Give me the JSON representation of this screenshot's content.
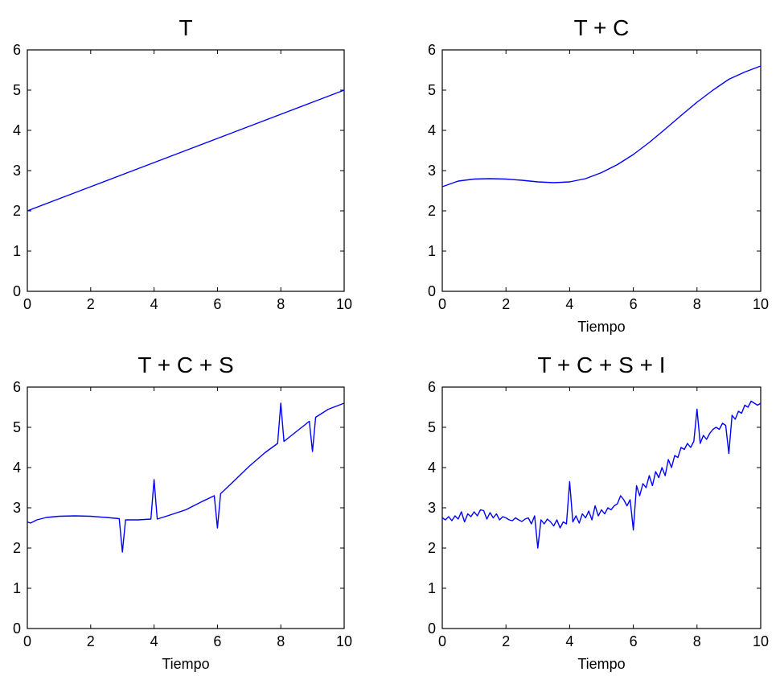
{
  "chart_data": [
    {
      "type": "line",
      "title": "T",
      "xlabel": "",
      "ylabel": "",
      "xlim": [
        0,
        10
      ],
      "ylim": [
        0,
        6
      ],
      "xticks": [
        0,
        2,
        4,
        6,
        8,
        10
      ],
      "yticks": [
        0,
        1,
        2,
        3,
        4,
        5,
        6
      ],
      "grid": false,
      "color": "#0000ff",
      "x": [
        0,
        1,
        2,
        3,
        4,
        5,
        6,
        7,
        8,
        9,
        10
      ],
      "y": [
        2.0,
        2.3,
        2.6,
        2.9,
        3.2,
        3.5,
        3.8,
        4.1,
        4.4,
        4.7,
        5.0
      ]
    },
    {
      "type": "line",
      "title": "T + C",
      "xlabel": "Tiempo",
      "ylabel": "",
      "xlim": [
        0,
        10
      ],
      "ylim": [
        0,
        6
      ],
      "xticks": [
        0,
        2,
        4,
        6,
        8,
        10
      ],
      "yticks": [
        0,
        1,
        2,
        3,
        4,
        5,
        6
      ],
      "grid": false,
      "color": "#0000ff",
      "x": [
        0,
        0.5,
        1,
        1.5,
        2,
        2.5,
        3,
        3.5,
        4,
        4.5,
        5,
        5.5,
        6,
        6.5,
        7,
        7.5,
        8,
        8.5,
        9,
        9.5,
        10
      ],
      "y": [
        2.6,
        2.74,
        2.79,
        2.8,
        2.79,
        2.76,
        2.72,
        2.7,
        2.72,
        2.8,
        2.95,
        3.15,
        3.4,
        3.7,
        4.03,
        4.37,
        4.7,
        5.0,
        5.27,
        5.45,
        5.6
      ]
    },
    {
      "type": "line",
      "title": "T + C + S",
      "xlabel": "Tiempo",
      "ylabel": "",
      "xlim": [
        0,
        10
      ],
      "ylim": [
        0,
        6
      ],
      "xticks": [
        0,
        2,
        4,
        6,
        8,
        10
      ],
      "yticks": [
        0,
        1,
        2,
        3,
        4,
        5,
        6
      ],
      "grid": false,
      "color": "#0000ff",
      "x": [
        0,
        0.1,
        0.3,
        0.6,
        1,
        1.5,
        2,
        2.5,
        2.9,
        3.0,
        3.1,
        3.5,
        3.9,
        4.0,
        4.1,
        4.5,
        5,
        5.5,
        5.9,
        6.0,
        6.1,
        6.5,
        7,
        7.5,
        7.9,
        8.0,
        8.1,
        8.5,
        8.9,
        9.0,
        9.1,
        9.5,
        10
      ],
      "y": [
        2.65,
        2.62,
        2.7,
        2.76,
        2.79,
        2.8,
        2.79,
        2.76,
        2.73,
        1.9,
        2.7,
        2.7,
        2.72,
        3.7,
        2.72,
        2.82,
        2.95,
        3.15,
        3.3,
        2.5,
        3.35,
        3.65,
        4.03,
        4.37,
        4.6,
        5.6,
        4.65,
        4.9,
        5.15,
        4.4,
        5.25,
        5.45,
        5.6
      ]
    },
    {
      "type": "line",
      "title": "T + C + S + I",
      "xlabel": "Tiempo",
      "ylabel": "",
      "xlim": [
        0,
        10
      ],
      "ylim": [
        0,
        6
      ],
      "xticks": [
        0,
        2,
        4,
        6,
        8,
        10
      ],
      "yticks": [
        0,
        1,
        2,
        3,
        4,
        5,
        6
      ],
      "grid": false,
      "color": "#0000ff",
      "x": [
        0,
        0.1,
        0.2,
        0.3,
        0.4,
        0.5,
        0.6,
        0.7,
        0.8,
        0.9,
        1.0,
        1.1,
        1.2,
        1.3,
        1.4,
        1.5,
        1.6,
        1.7,
        1.8,
        1.9,
        2.0,
        2.1,
        2.2,
        2.3,
        2.4,
        2.5,
        2.6,
        2.7,
        2.8,
        2.9,
        3.0,
        3.1,
        3.2,
        3.3,
        3.4,
        3.5,
        3.6,
        3.7,
        3.8,
        3.9,
        4.0,
        4.1,
        4.2,
        4.3,
        4.4,
        4.5,
        4.6,
        4.7,
        4.8,
        4.9,
        5.0,
        5.1,
        5.2,
        5.3,
        5.4,
        5.5,
        5.6,
        5.7,
        5.8,
        5.9,
        6.0,
        6.1,
        6.2,
        6.3,
        6.4,
        6.5,
        6.6,
        6.7,
        6.8,
        6.9,
        7.0,
        7.1,
        7.2,
        7.3,
        7.4,
        7.5,
        7.6,
        7.7,
        7.8,
        7.9,
        8.0,
        8.1,
        8.2,
        8.3,
        8.4,
        8.5,
        8.6,
        8.7,
        8.8,
        8.9,
        9.0,
        9.1,
        9.2,
        9.3,
        9.4,
        9.5,
        9.6,
        9.7,
        9.8,
        9.9,
        10.0
      ],
      "y": [
        2.75,
        2.7,
        2.78,
        2.68,
        2.8,
        2.72,
        2.9,
        2.65,
        2.85,
        2.78,
        2.9,
        2.8,
        2.95,
        2.93,
        2.72,
        2.88,
        2.75,
        2.85,
        2.7,
        2.78,
        2.75,
        2.7,
        2.68,
        2.75,
        2.7,
        2.66,
        2.72,
        2.75,
        2.6,
        2.8,
        2.0,
        2.7,
        2.6,
        2.72,
        2.65,
        2.55,
        2.7,
        2.5,
        2.65,
        2.6,
        3.65,
        2.65,
        2.8,
        2.62,
        2.85,
        2.75,
        2.92,
        2.7,
        3.05,
        2.8,
        2.95,
        2.85,
        3.0,
        2.95,
        3.05,
        3.1,
        3.3,
        3.2,
        3.05,
        3.2,
        2.45,
        3.55,
        3.3,
        3.6,
        3.5,
        3.8,
        3.55,
        3.9,
        3.75,
        4.0,
        3.8,
        4.2,
        4.0,
        4.3,
        4.25,
        4.5,
        4.45,
        4.6,
        4.5,
        4.65,
        5.45,
        4.6,
        4.8,
        4.7,
        4.85,
        4.95,
        5.0,
        4.95,
        5.1,
        5.05,
        4.35,
        5.3,
        5.2,
        5.4,
        5.35,
        5.55,
        5.5,
        5.65,
        5.6,
        5.55,
        5.6
      ]
    }
  ]
}
